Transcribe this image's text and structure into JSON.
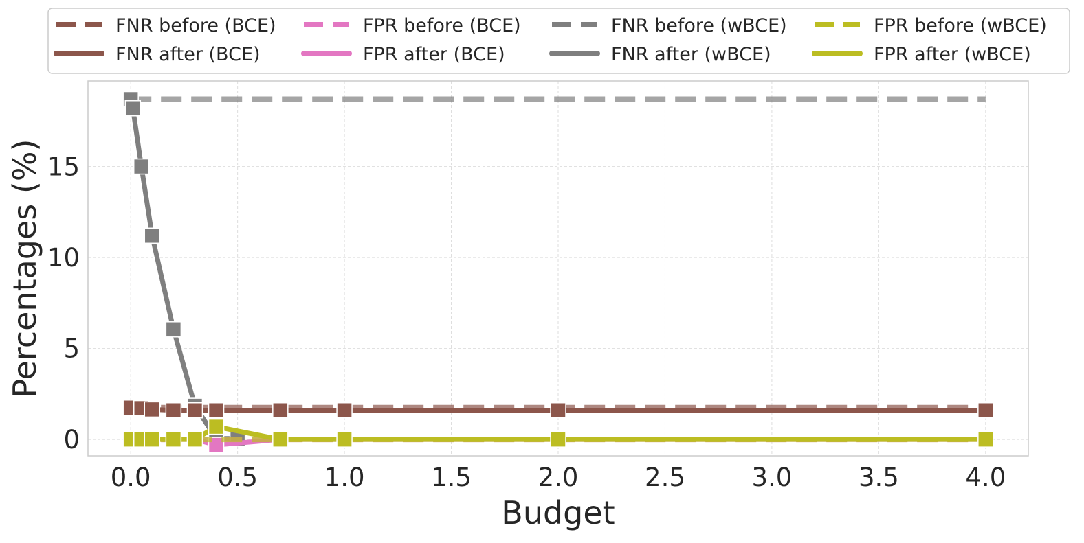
{
  "chart_data": {
    "type": "line",
    "title": "",
    "xlabel": "Budget",
    "ylabel": "Percentages (%)",
    "xlim": [
      -0.2,
      4.2
    ],
    "ylim": [
      -0.9,
      19.7
    ],
    "xticks": [
      0.0,
      0.5,
      1.0,
      1.5,
      2.0,
      2.5,
      3.0,
      3.5,
      4.0
    ],
    "xtick_labels": [
      "0.0",
      "0.5",
      "1.0",
      "1.5",
      "2.0",
      "2.5",
      "3.0",
      "3.5",
      "4.0"
    ],
    "yticks": [
      0,
      5,
      10,
      15
    ],
    "ytick_labels": [
      "0",
      "5",
      "10",
      "15"
    ],
    "grid": true,
    "legend_position": "top",
    "series": [
      {
        "name": "FNR before (BCE)",
        "style": "dashed",
        "marker": false,
        "color": "#8c564b",
        "x": [
          0.0,
          4.0
        ],
        "values": [
          1.75,
          1.75
        ]
      },
      {
        "name": "FNR after (BCE)",
        "style": "solid",
        "marker": true,
        "color": "#8c564b",
        "x": [
          0.0,
          0.05,
          0.1,
          0.2,
          0.3,
          0.4,
          0.7,
          1.0,
          2.0,
          4.0
        ],
        "values": [
          1.75,
          1.72,
          1.65,
          1.6,
          1.6,
          1.6,
          1.6,
          1.6,
          1.6,
          1.6
        ]
      },
      {
        "name": "FPR before (BCE)",
        "style": "dashed",
        "marker": false,
        "color": "#e377c2",
        "x": [
          0.0,
          4.0
        ],
        "values": [
          0.0,
          0.0
        ]
      },
      {
        "name": "FPR after (BCE)",
        "style": "solid",
        "marker": true,
        "color": "#e377c2",
        "x": [
          0.0,
          0.05,
          0.1,
          0.2,
          0.3,
          0.4,
          0.7,
          1.0,
          2.0,
          4.0
        ],
        "values": [
          0.0,
          0.0,
          0.0,
          0.0,
          0.0,
          -0.3,
          0.0,
          0.0,
          0.0,
          0.0
        ]
      },
      {
        "name": "FNR before (wBCE)",
        "style": "dashed",
        "marker": false,
        "color": "#7f7f7f",
        "x": [
          0.0,
          4.0
        ],
        "values": [
          18.7,
          18.7
        ]
      },
      {
        "name": "FNR after (wBCE)",
        "style": "solid",
        "marker": true,
        "color": "#7f7f7f",
        "x": [
          0.0,
          0.01,
          0.05,
          0.1,
          0.2,
          0.3,
          0.4,
          0.5
        ],
        "values": [
          18.7,
          18.2,
          15.0,
          11.2,
          6.05,
          1.85,
          0.05,
          0.05
        ]
      },
      {
        "name": "FPR before (wBCE)",
        "style": "dashed",
        "marker": false,
        "color": "#bcbd22",
        "x": [
          0.0,
          4.0
        ],
        "values": [
          0.0,
          0.0
        ]
      },
      {
        "name": "FPR after (wBCE)",
        "style": "solid",
        "marker": true,
        "color": "#bcbd22",
        "x": [
          0.0,
          0.05,
          0.1,
          0.2,
          0.3,
          0.4,
          0.7,
          1.0,
          2.0,
          4.0
        ],
        "values": [
          0.0,
          0.0,
          0.0,
          0.0,
          0.0,
          0.7,
          0.0,
          0.0,
          0.0,
          0.0
        ]
      }
    ],
    "legend": [
      "FNR before (BCE)",
      "FPR before (BCE)",
      "FNR before (wBCE)",
      "FPR before (wBCE)",
      "FNR after (BCE)",
      "FPR after (BCE)",
      "FNR after (wBCE)",
      "FPR after (wBCE)"
    ]
  }
}
